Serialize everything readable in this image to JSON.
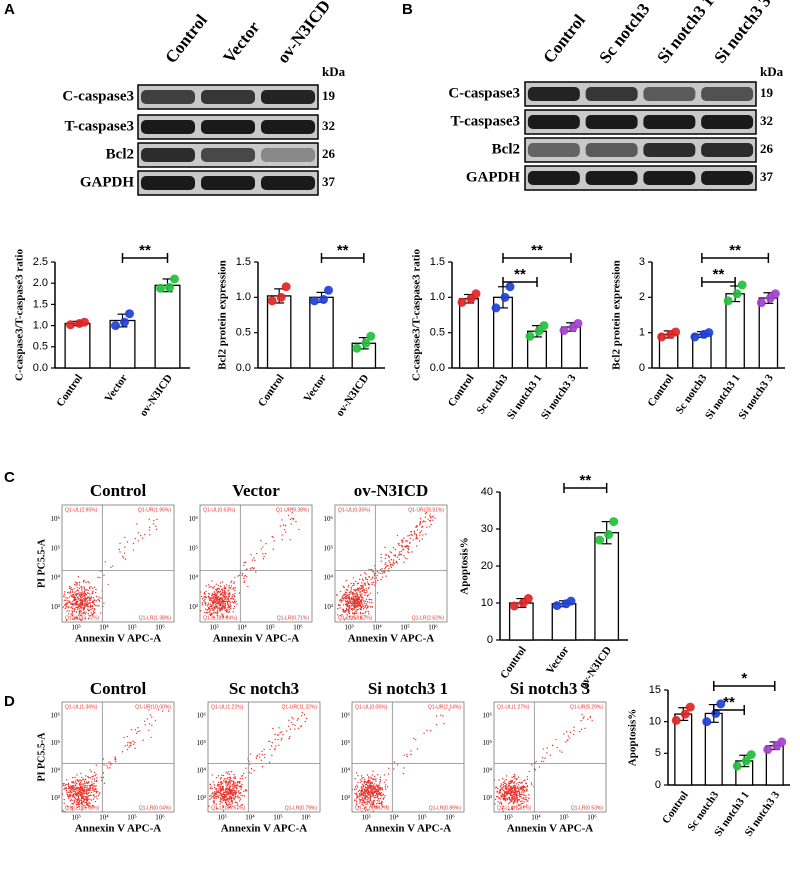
{
  "panels": [
    "A",
    "B",
    "C",
    "D"
  ],
  "blots": [
    {
      "lanes": [
        "Control",
        "Vector",
        "ov-N3ICD"
      ],
      "unit": "kDa",
      "rows": [
        {
          "protein": "C-caspase3",
          "kda": 19
        },
        {
          "protein": "T-caspase3",
          "kda": 32
        },
        {
          "protein": "Bcl2",
          "kda": 26
        },
        {
          "protein": "GAPDH",
          "kda": 37
        }
      ]
    },
    {
      "lanes": [
        "Control",
        "Sc notch3",
        "Si notch3 1",
        "Si notch3 3"
      ],
      "unit": "kDa",
      "rows": [
        {
          "protein": "C-caspase3",
          "kda": 19
        },
        {
          "protein": "T-caspase3",
          "kda": 32
        },
        {
          "protein": "Bcl2",
          "kda": 26
        },
        {
          "protein": "GAPDH",
          "kda": 37
        }
      ]
    }
  ],
  "flow": {
    "y_label": "PI PC5.5-A",
    "x_label": "Annexin V APC-A",
    "ticks": [
      "10³",
      "10⁴",
      "10⁵",
      "10⁶"
    ],
    "sets": [
      {
        "plots": [
          {
            "title": "Control",
            "quadrants": [
              "Q1-UL(2.95%)",
              "Q1-UR(1.95%)",
              "Q1-LL(93.72%)",
              "Q1-LR(1.38%)"
            ]
          },
          {
            "title": "Vector",
            "quadrants": [
              "Q1-UL(0.63%)",
              "Q1-UR(9.38%)",
              "Q1-LL(89.04%)",
              "Q1-LR(0.71%)"
            ]
          },
          {
            "title": "ov-N3ICD",
            "quadrants": [
              "Q1-UL(0.35%)",
              "Q1-UR(28.51%)",
              "Q1-LL(68.52%)",
              "Q1-LR(2.62%)"
            ]
          }
        ]
      },
      {
        "plots": [
          {
            "title": "Control",
            "quadrants": [
              "Q1-UL(1.36%)",
              "Q1-UR(10.00%)",
              "Q1-LL(88.58%)",
              "Q1-LR(0.04%)"
            ]
          },
          {
            "title": "Sc notch3",
            "quadrants": [
              "Q1-UL(1.22%)",
              "Q1-UR(11.32%)",
              "Q1-LL(86.67%)",
              "Q1-LR(0.79%)"
            ]
          },
          {
            "title": "Si notch3 1",
            "quadrants": [
              "Q1-UL(0.05%)",
              "Q1-UR(2.14%)",
              "Q1-LL(96.92%)",
              "Q1-LR(0.89%)"
            ]
          },
          {
            "title": "Si notch3 3",
            "quadrants": [
              "Q1-UL(1.27%)",
              "Q1-UR(5.29%)",
              "Q1-LL(92.91%)",
              "Q1-LR(0.53%)"
            ]
          }
        ]
      }
    ]
  },
  "chart_data": [
    {
      "type": "bar",
      "y_label": "C-caspase3/T-caspase3 ratio",
      "categories": [
        "Control",
        "Vector",
        "ov-N3ICD"
      ],
      "values": [
        1.05,
        1.12,
        1.95
      ],
      "errors": [
        0.05,
        0.15,
        0.15
      ],
      "points": [
        [
          1.02,
          1.05,
          1.08
        ],
        [
          1.0,
          1.08,
          1.28
        ],
        [
          1.88,
          1.9,
          2.1
        ]
      ],
      "colors": [
        "#e02424",
        "#1f3fd6",
        "#22c03c"
      ],
      "bar_color": "#ffffff",
      "ylim": [
        0,
        2.5
      ],
      "yticks": [
        {
          "value": 0,
          "label": "0.0"
        },
        0.5,
        {
          "value": 1,
          "label": "1.0"
        },
        1.5,
        {
          "value": 2,
          "label": "2.0"
        },
        2.5
      ],
      "comparisons": [
        {
          "between": [
            "Vector",
            "ov-N3ICD"
          ],
          "label": "**"
        }
      ]
    },
    {
      "type": "bar",
      "y_label": "Bcl2 protein expression",
      "categories": [
        "Control",
        "Vector",
        "ov-N3ICD"
      ],
      "values": [
        1.02,
        1.0,
        0.35
      ],
      "errors": [
        0.1,
        0.07,
        0.08
      ],
      "points": [
        [
          0.95,
          1.0,
          1.15
        ],
        [
          0.95,
          0.97,
          1.1
        ],
        [
          0.28,
          0.35,
          0.45
        ]
      ],
      "colors": [
        "#e02424",
        "#1f3fd6",
        "#22c03c"
      ],
      "bar_color": "#ffffff",
      "ylim": [
        0,
        1.5
      ],
      "yticks": [
        {
          "value": 0,
          "label": "0.0"
        },
        0.5,
        {
          "value": 1,
          "label": "1.0"
        },
        1.5
      ],
      "comparisons": [
        {
          "between": [
            "Vector",
            "ov-N3ICD"
          ],
          "label": "**"
        }
      ]
    },
    {
      "type": "bar",
      "y_label": "C-caspase3/T-caspase3 ratio",
      "categories": [
        "Control",
        "Sc notch3",
        "Si notch3 1",
        "Si notch3 3"
      ],
      "values": [
        0.98,
        1.0,
        0.52,
        0.58
      ],
      "errors": [
        0.06,
        0.15,
        0.08,
        0.06
      ],
      "points": [
        [
          0.93,
          0.98,
          1.05
        ],
        [
          0.85,
          1.0,
          1.15
        ],
        [
          0.45,
          0.52,
          0.6
        ],
        [
          0.53,
          0.57,
          0.63
        ]
      ],
      "colors": [
        "#e02424",
        "#1f3fd6",
        "#22c03c",
        "#a43fd0"
      ],
      "bar_color": "#ffffff",
      "ylim": [
        0,
        1.5
      ],
      "yticks": [
        {
          "value": 0,
          "label": "0.0"
        },
        0.5,
        {
          "value": 1,
          "label": "1.0"
        },
        1.5
      ],
      "comparisons": [
        {
          "between": [
            "Sc notch3",
            "Si notch3 1"
          ],
          "label": "**"
        },
        {
          "between": [
            "Sc notch3",
            "Si notch3 3"
          ],
          "label": "**"
        }
      ]
    },
    {
      "type": "bar",
      "y_label": "Bcl2 protein expression",
      "categories": [
        "Control",
        "Sc notch3",
        "Si notch3 1",
        "Si notch3 3"
      ],
      "values": [
        0.95,
        0.95,
        2.1,
        1.98
      ],
      "errors": [
        0.1,
        0.08,
        0.22,
        0.15
      ],
      "points": [
        [
          0.88,
          0.95,
          1.02
        ],
        [
          0.88,
          0.95,
          1.0
        ],
        [
          1.9,
          2.1,
          2.35
        ],
        [
          1.85,
          1.98,
          2.1
        ]
      ],
      "colors": [
        "#e02424",
        "#1f3fd6",
        "#22c03c",
        "#a43fd0"
      ],
      "bar_color": "#ffffff",
      "ylim": [
        0,
        3
      ],
      "yticks": [
        0,
        1,
        2,
        3
      ],
      "comparisons": [
        {
          "between": [
            "Sc notch3",
            "Si notch3 1"
          ],
          "label": "**"
        },
        {
          "between": [
            "Sc notch3",
            "Si notch3 3"
          ],
          "label": "**"
        }
      ]
    },
    {
      "type": "bar",
      "y_label": "Apoptosis%",
      "categories": [
        "Control",
        "Vector",
        "ov-N3ICD"
      ],
      "values": [
        10,
        9.8,
        29
      ],
      "errors": [
        1.2,
        0.8,
        3
      ],
      "points": [
        [
          9.2,
          10,
          11.2
        ],
        [
          9.3,
          9.8,
          10.5
        ],
        [
          27,
          28.5,
          32
        ]
      ],
      "colors": [
        "#e02424",
        "#1f3fd6",
        "#22c03c"
      ],
      "bar_color": "#ffffff",
      "ylim": [
        0,
        40
      ],
      "yticks": [
        0,
        10,
        20,
        30,
        40
      ],
      "comparisons": [
        {
          "between": [
            "Vector",
            "ov-N3ICD"
          ],
          "label": "**"
        }
      ]
    },
    {
      "type": "bar",
      "y_label": "Apoptosis%",
      "categories": [
        "Control",
        "Sc notch3",
        "Si notch3 1",
        "Si notch3 3"
      ],
      "values": [
        11.2,
        11.3,
        3.8,
        6.2
      ],
      "errors": [
        1.0,
        1.4,
        0.9,
        0.6
      ],
      "points": [
        [
          10.2,
          11.2,
          12.3
        ],
        [
          10.0,
          11.3,
          12.8
        ],
        [
          3.0,
          3.8,
          4.8
        ],
        [
          5.6,
          6.2,
          6.8
        ]
      ],
      "colors": [
        "#e02424",
        "#1f3fd6",
        "#22c03c",
        "#a43fd0"
      ],
      "bar_color": "#ffffff",
      "ylim": [
        0,
        15
      ],
      "yticks": [
        0,
        5,
        10,
        15
      ],
      "comparisons": [
        {
          "between": [
            "Sc notch3",
            "Si notch3 1"
          ],
          "label": "**"
        },
        {
          "between": [
            "Sc notch3",
            "Si notch3 3"
          ],
          "label": "*"
        }
      ]
    }
  ]
}
